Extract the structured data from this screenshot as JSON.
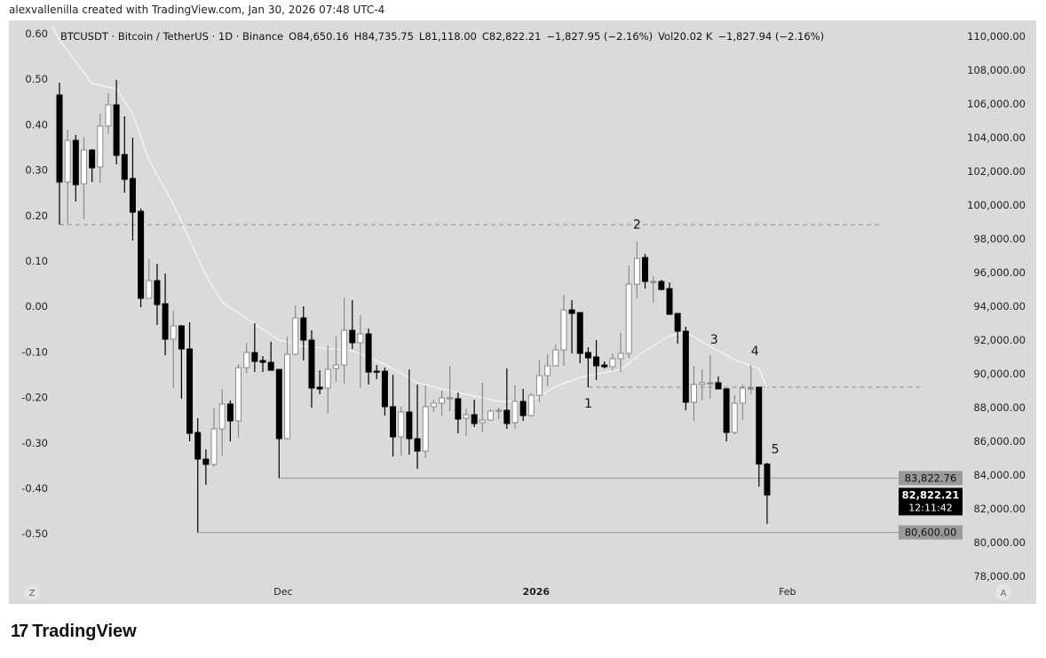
{
  "header": {
    "credit": "alexvallenilla created with TradingView.com, Jan 30, 2026 07:48 UTC-4"
  },
  "legend": {
    "symbol": "BTCUSDT · Bitcoin / TetherUS · 1D · Binance",
    "open": "O84,650.16",
    "high": "H84,735.75",
    "low": "L81,118.00",
    "close": "C82,822.21",
    "change": "−1,827.95 (−2.16%)",
    "volume": "Vol20.02 K",
    "vol_change": "−1,827.94 (−2.16%)"
  },
  "footer": {
    "brand": "TradingView"
  },
  "chart_data": {
    "type": "candlestick",
    "symbol": "BTCUSDT",
    "interval": "1D",
    "ylim": [
      78000,
      110000
    ],
    "y_ticks": [
      "110,000.00",
      "108,000.00",
      "106,000.00",
      "104,000.00",
      "102,000.00",
      "100,000.00",
      "98,000.00",
      "96,000.00",
      "94,000.00",
      "92,000.00",
      "90,000.00",
      "88,000.00",
      "86,000.00",
      "84,000.00",
      "82,000.00",
      "80,000.00",
      "78,000.00"
    ],
    "left_ticks": [
      "0.60",
      "0.50",
      "0.40",
      "0.30",
      "0.20",
      "0.10",
      "0.00",
      "-0.10",
      "-0.20",
      "-0.30",
      "-0.40",
      "-0.50"
    ],
    "x_ticks": [
      {
        "label": "Dec",
        "bold": false,
        "index": 27.5
      },
      {
        "label": "2026",
        "bold": true,
        "index": 58.6
      },
      {
        "label": "Feb",
        "bold": false,
        "index": 89.5
      }
    ],
    "corner_labels": {
      "left": "Z",
      "right": "A"
    },
    "colors": {
      "up": "#ffffff",
      "down": "#000000",
      "up_border": "#888888",
      "ma": "#f5f5f5",
      "background": "#dadada"
    },
    "ohlc": [
      [
        106526,
        107263,
        98842,
        101368
      ],
      [
        101368,
        104474,
        98895,
        103842
      ],
      [
        103842,
        104158,
        100210,
        101210
      ],
      [
        101263,
        104053,
        99158,
        103263
      ],
      [
        103263,
        103316,
        101368,
        102210
      ],
      [
        102263,
        105421,
        101316,
        104684
      ],
      [
        104684,
        106632,
        104211,
        105947
      ],
      [
        105947,
        107421,
        102421,
        102947
      ],
      [
        103000,
        105263,
        100737,
        101526
      ],
      [
        101579,
        104000,
        97895,
        99579
      ],
      [
        99632,
        99789,
        93947,
        94474
      ],
      [
        94474,
        96789,
        94474,
        95526
      ],
      [
        95526,
        96526,
        92895,
        94105
      ],
      [
        94158,
        95947,
        91105,
        92053
      ],
      [
        92053,
        93737,
        89158,
        92842
      ],
      [
        92842,
        92895,
        88526,
        91474
      ],
      [
        91474,
        93053,
        86000,
        86474
      ],
      [
        86526,
        87368,
        80600,
        84947
      ],
      [
        84947,
        85526,
        83421,
        84632
      ],
      [
        84632,
        88000,
        84500,
        86737
      ],
      [
        86737,
        89105,
        85158,
        88211
      ],
      [
        88211,
        88421,
        86000,
        87211
      ],
      [
        87211,
        90579,
        86210,
        90368
      ],
      [
        90368,
        91842,
        90053,
        91263
      ],
      [
        91263,
        93000,
        90105,
        90737
      ],
      [
        90790,
        91053,
        90105,
        90684
      ],
      [
        90684,
        91895,
        90211,
        90211
      ],
      [
        90263,
        90263,
        83822,
        86158
      ],
      [
        86158,
        92211,
        86105,
        91158
      ],
      [
        91158,
        94053,
        91105,
        93316
      ],
      [
        93316,
        94000,
        90790,
        92000
      ],
      [
        92000,
        92579,
        88000,
        89158
      ],
      [
        89210,
        90210,
        88790,
        89105
      ],
      [
        89158,
        91684,
        87632,
        90263
      ],
      [
        90316,
        92211,
        89526,
        90526
      ],
      [
        90526,
        94526,
        89421,
        92579
      ],
      [
        92579,
        94368,
        91474,
        91842
      ],
      [
        91842,
        93474,
        89158,
        92368
      ],
      [
        92368,
        92684,
        89368,
        90105
      ],
      [
        90158,
        90526,
        89684,
        90105
      ],
      [
        90158,
        90368,
        87526,
        88053
      ],
      [
        88053,
        89947,
        85105,
        86263
      ],
      [
        86263,
        88053,
        85158,
        87737
      ],
      [
        87737,
        90263,
        85210,
        86158
      ],
      [
        86158,
        89368,
        84368,
        85421
      ],
      [
        85421,
        89316,
        85000,
        88053
      ],
      [
        88053,
        88474,
        87737,
        88263
      ],
      [
        88263,
        89000,
        87526,
        88579
      ],
      [
        88579,
        90474,
        87790,
        88579
      ],
      [
        88526,
        88895,
        86474,
        87316
      ],
      [
        87368,
        87947,
        86316,
        87579
      ],
      [
        87579,
        88474,
        86842,
        87053
      ],
      [
        87105,
        89474,
        86526,
        87263
      ],
      [
        87263,
        87895,
        87211,
        87790
      ],
      [
        87842,
        88000,
        87316,
        87842
      ],
      [
        87842,
        90316,
        86737,
        87053
      ],
      [
        87105,
        89316,
        86737,
        88368
      ],
      [
        88368,
        89105,
        87211,
        87526
      ],
      [
        87526,
        88842,
        87474,
        88737
      ],
      [
        88737,
        90842,
        88316,
        89895
      ],
      [
        89895,
        91158,
        89263,
        90474
      ],
      [
        90474,
        91737,
        90474,
        91421
      ],
      [
        91421,
        94684,
        90474,
        93789
      ],
      [
        93789,
        94368,
        91211,
        93579
      ],
      [
        93632,
        93632,
        90632,
        91211
      ],
      [
        91263,
        91579,
        89211,
        90947
      ],
      [
        91000,
        92000,
        89632,
        90474
      ],
      [
        90526,
        90737,
        90316,
        90421
      ],
      [
        90421,
        91211,
        90211,
        90895
      ],
      [
        90895,
        92421,
        90105,
        91211
      ],
      [
        91211,
        96421,
        90947,
        95316
      ],
      [
        95316,
        97842,
        94474,
        96842
      ],
      [
        96895,
        97105,
        95053,
        95474
      ],
      [
        95474,
        95790,
        94211,
        95474
      ],
      [
        95474,
        95579,
        94947,
        95000
      ],
      [
        95053,
        95421,
        93526,
        93526
      ],
      [
        93579,
        93579,
        91790,
        92526
      ],
      [
        92526,
        92790,
        87842,
        88316
      ],
      [
        88316,
        90474,
        87211,
        89368
      ],
      [
        89368,
        90263,
        88421,
        89474
      ],
      [
        89474,
        91105,
        88526,
        89474
      ],
      [
        89474,
        89842,
        89105,
        89105
      ],
      [
        89105,
        89158,
        86000,
        86526
      ],
      [
        86526,
        88737,
        86421,
        88263
      ],
      [
        88263,
        89368,
        87263,
        89158
      ],
      [
        89158,
        90526,
        88790,
        89158
      ],
      [
        89211,
        89211,
        83316,
        84650
      ],
      [
        84650.16,
        84735.75,
        81118,
        82822.21
      ]
    ],
    "moving_average": [
      [
        0,
        109790
      ],
      [
        4,
        107210
      ],
      [
        7,
        106900
      ],
      [
        9,
        105420
      ],
      [
        11,
        102680
      ],
      [
        14,
        100050
      ],
      [
        16,
        97950
      ],
      [
        18,
        95840
      ],
      [
        20,
        94260
      ],
      [
        24,
        92950
      ],
      [
        27,
        92000
      ],
      [
        30,
        91630
      ],
      [
        36,
        91370
      ],
      [
        40,
        90580
      ],
      [
        44,
        89470
      ],
      [
        48,
        89000
      ],
      [
        54,
        88370
      ],
      [
        58,
        88370
      ],
      [
        61,
        89260
      ],
      [
        64,
        89790
      ],
      [
        69,
        90260
      ],
      [
        72,
        91370
      ],
      [
        75,
        92260
      ],
      [
        77,
        92470
      ],
      [
        80,
        91630
      ],
      [
        83,
        90840
      ],
      [
        86,
        90310
      ],
      [
        87,
        89160
      ]
    ],
    "horizontal_lines": [
      {
        "price": 98842,
        "style": "dashed",
        "from_index": 0,
        "to_index": 101
      },
      {
        "price": 89210,
        "style": "dashed",
        "from_index": 65,
        "to_index": 106
      },
      {
        "price": 83822.76,
        "style": "solid",
        "from_index": 27,
        "to_index": 110,
        "label": "83,822.76"
      },
      {
        "price": 80600,
        "style": "solid",
        "from_index": 17,
        "to_index": 110,
        "label": "80,600.00"
      }
    ],
    "last_price": {
      "price": 82822.21,
      "label": "82,822.21",
      "countdown": "12:11:42"
    },
    "wave_labels": [
      {
        "label": "1",
        "index": 65,
        "price": 88000
      },
      {
        "label": "2",
        "index": 71,
        "price": 98600
      },
      {
        "label": "3",
        "index": 80.5,
        "price": 91800
      },
      {
        "label": "4",
        "index": 85.5,
        "price": 91100
      },
      {
        "label": "5",
        "index": 88,
        "price": 85300
      }
    ]
  }
}
